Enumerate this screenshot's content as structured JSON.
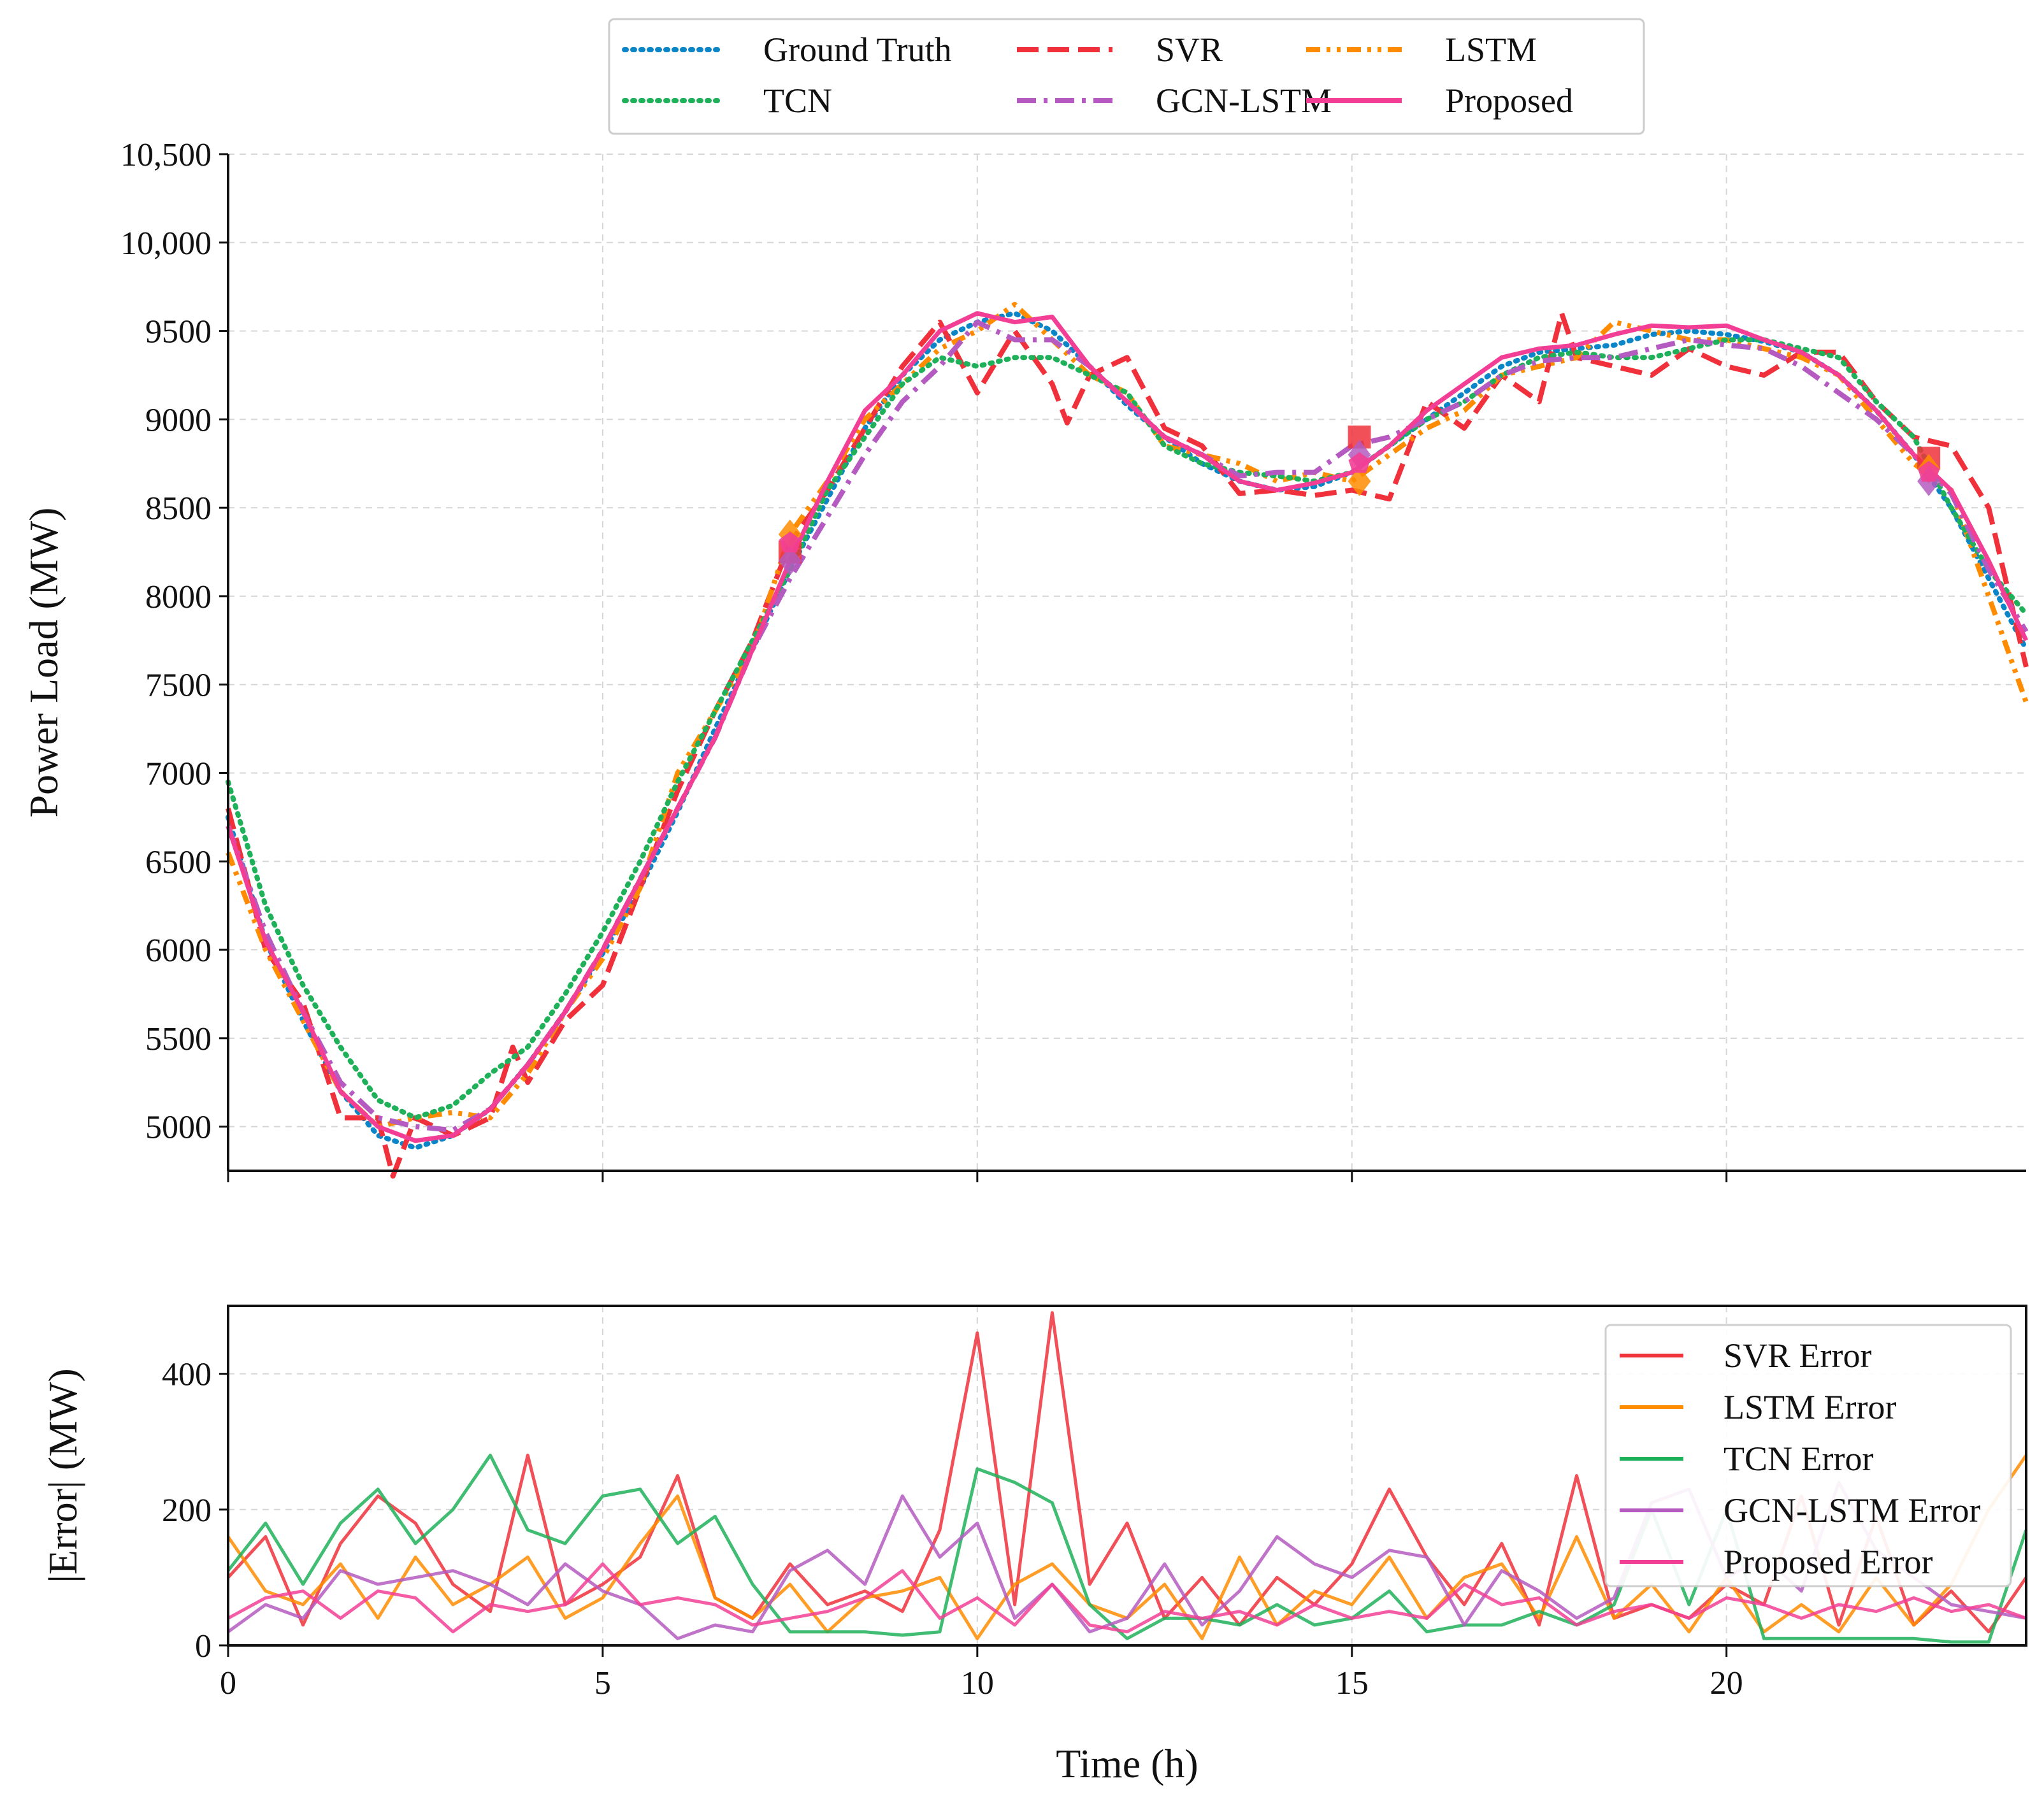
{
  "chart_data": [
    {
      "type": "line",
      "xlabel": "",
      "ylabel": "Power Load (MW)",
      "xlim": [
        0,
        24
      ],
      "ylim": [
        4750,
        10500
      ],
      "xticks": [
        0,
        5,
        10,
        15,
        20
      ],
      "yticks": [
        5000,
        5500,
        6000,
        6500,
        7000,
        7500,
        8000,
        8500,
        9000,
        9500,
        10000,
        10500
      ],
      "ytick_labels": [
        "5000",
        "5500",
        "6000",
        "6500",
        "7000",
        "7500",
        "8000",
        "8500",
        "9000",
        "9500",
        "10,000",
        "10,500"
      ],
      "grid": true,
      "legend_position": "top-center",
      "legend": [
        "Ground Truth",
        "SVR",
        "LSTM",
        "TCN",
        "GCN-LSTM",
        "Proposed"
      ],
      "series": [
        {
          "name": "Ground Truth",
          "color": "#0a85c8",
          "style": "dotted",
          "x": [
            0,
            0.5,
            1,
            1.5,
            2,
            2.5,
            3,
            3.5,
            4,
            4.5,
            5,
            5.5,
            6,
            6.5,
            7,
            7.5,
            8,
            8.5,
            9,
            9.5,
            10,
            10.5,
            11,
            11.5,
            12,
            12.5,
            13,
            13.5,
            14,
            14.5,
            15,
            15.5,
            16,
            16.5,
            17,
            17.5,
            18,
            18.5,
            19,
            19.5,
            20,
            20.5,
            21,
            21.5,
            22,
            22.5,
            23,
            23.5,
            24
          ],
          "y": [
            6750,
            6050,
            5600,
            5200,
            4950,
            4880,
            4950,
            5100,
            5350,
            5650,
            5980,
            6350,
            6780,
            7250,
            7700,
            8150,
            8550,
            8950,
            9250,
            9450,
            9550,
            9600,
            9500,
            9300,
            9080,
            8900,
            8750,
            8650,
            8600,
            8620,
            8700,
            8850,
            9000,
            9150,
            9300,
            9380,
            9400,
            9420,
            9480,
            9500,
            9480,
            9440,
            9380,
            9250,
            9050,
            8800,
            8500,
            8100,
            7700
          ]
        },
        {
          "name": "SVR",
          "color": "#f0313b",
          "style": "dashed",
          "x": [
            0,
            0.5,
            1,
            1.5,
            2,
            2.2,
            2.5,
            3,
            3.5,
            3.8,
            4,
            4.5,
            5,
            5.5,
            6,
            6.5,
            7,
            7.5,
            8,
            8.5,
            9,
            9.5,
            10,
            10.5,
            11,
            11.2,
            11.5,
            12,
            12.5,
            13,
            13.5,
            14,
            14.5,
            15,
            15.5,
            16,
            16.5,
            17,
            17.5,
            17.8,
            18,
            18.5,
            19,
            19.5,
            20,
            20.5,
            21,
            21.5,
            22,
            22.5,
            23,
            23.5,
            24
          ],
          "y": [
            6800,
            6000,
            5700,
            5050,
            5050,
            4720,
            5050,
            4950,
            5050,
            5450,
            5250,
            5600,
            5800,
            6350,
            6900,
            7350,
            7750,
            8300,
            8600,
            8950,
            9300,
            9550,
            9150,
            9500,
            9200,
            8980,
            9250,
            9350,
            8950,
            8850,
            8580,
            8600,
            8570,
            8600,
            8550,
            9100,
            8950,
            9250,
            9100,
            9600,
            9350,
            9300,
            9250,
            9400,
            9300,
            9250,
            9380,
            9380,
            9100,
            8900,
            8850,
            8500,
            7600
          ]
        },
        {
          "name": "LSTM",
          "color": "#ff8c00",
          "style": "dash-dot-dot",
          "x": [
            0,
            0.5,
            1,
            1.5,
            2,
            2.5,
            3,
            3.5,
            4,
            4.5,
            5,
            5.5,
            6,
            6.5,
            7,
            7.5,
            8,
            8.5,
            9,
            9.5,
            10,
            10.5,
            11,
            11.5,
            12,
            12.5,
            13,
            13.5,
            14,
            14.5,
            15,
            15.5,
            16,
            16.5,
            17,
            17.5,
            18,
            18.5,
            19,
            19.5,
            20,
            20.5,
            21,
            21.5,
            22,
            22.5,
            23,
            23.5,
            24
          ],
          "y": [
            6550,
            6000,
            5600,
            5200,
            5000,
            5050,
            5080,
            5050,
            5300,
            5650,
            5950,
            6350,
            7000,
            7350,
            7700,
            8350,
            8650,
            9000,
            9200,
            9400,
            9500,
            9650,
            9450,
            9250,
            9150,
            8850,
            8800,
            8750,
            8650,
            8700,
            8650,
            8800,
            8950,
            9050,
            9250,
            9300,
            9350,
            9550,
            9500,
            9450,
            9450,
            9400,
            9350,
            9250,
            9000,
            8750,
            8600,
            8000,
            7400
          ]
        },
        {
          "name": "TCN",
          "color": "#1fb05a",
          "style": "dotted",
          "x": [
            0,
            0.5,
            1,
            1.5,
            2,
            2.5,
            3,
            3.5,
            4,
            4.5,
            5,
            5.5,
            6,
            6.5,
            7,
            7.5,
            8,
            8.5,
            9,
            9.5,
            10,
            10.5,
            11,
            11.5,
            12,
            12.5,
            13,
            13.5,
            14,
            14.5,
            15,
            15.5,
            16,
            16.5,
            17,
            17.5,
            18,
            18.5,
            19,
            19.5,
            20,
            20.5,
            21,
            21.5,
            22,
            22.5,
            23,
            23.5,
            24
          ],
          "y": [
            6950,
            6250,
            5800,
            5450,
            5150,
            5050,
            5120,
            5300,
            5450,
            5750,
            6100,
            6500,
            6950,
            7350,
            7750,
            8150,
            8600,
            8900,
            9200,
            9350,
            9300,
            9350,
            9350,
            9250,
            9150,
            8850,
            8750,
            8700,
            8680,
            8650,
            8700,
            8850,
            9000,
            9100,
            9250,
            9350,
            9380,
            9350,
            9350,
            9400,
            9450,
            9450,
            9400,
            9350,
            9100,
            8900,
            8500,
            8150,
            7900
          ]
        },
        {
          "name": "GCN-LSTM",
          "color": "#b45ac0",
          "style": "dash-dot",
          "x": [
            0,
            0.5,
            1,
            1.5,
            2,
            2.5,
            3,
            3.5,
            4,
            4.5,
            5,
            5.5,
            6,
            6.5,
            7,
            7.5,
            8,
            8.5,
            9,
            9.5,
            10,
            10.5,
            11,
            11.5,
            12,
            12.5,
            13,
            13.5,
            14,
            14.5,
            15,
            15.5,
            16,
            16.5,
            17,
            17.5,
            18,
            18.5,
            19,
            19.5,
            20,
            20.5,
            21,
            21.5,
            22,
            22.5,
            23,
            23.5,
            24
          ],
          "y": [
            6700,
            6100,
            5650,
            5250,
            5050,
            5000,
            4980,
            5100,
            5350,
            5650,
            6000,
            6400,
            6800,
            7200,
            7700,
            8100,
            8450,
            8800,
            9100,
            9300,
            9550,
            9450,
            9450,
            9300,
            9100,
            8900,
            8800,
            8680,
            8700,
            8700,
            8850,
            8900,
            9000,
            9100,
            9250,
            9330,
            9350,
            9350,
            9400,
            9450,
            9420,
            9400,
            9300,
            9150,
            9000,
            8800,
            8580,
            8150,
            7800
          ]
        },
        {
          "name": "Proposed",
          "color": "#f23f95",
          "style": "solid",
          "x": [
            0,
            0.5,
            1,
            1.5,
            2,
            2.5,
            3,
            3.5,
            4,
            4.5,
            5,
            5.5,
            6,
            6.5,
            7,
            7.5,
            8,
            8.5,
            9,
            9.5,
            10,
            10.5,
            11,
            11.5,
            12,
            12.5,
            13,
            13.5,
            14,
            14.5,
            15,
            15.5,
            16,
            16.5,
            17,
            17.5,
            18,
            18.5,
            19,
            19.5,
            20,
            20.5,
            21,
            21.5,
            22,
            22.5,
            23,
            23.5,
            24
          ],
          "y": [
            6700,
            6050,
            5650,
            5200,
            5000,
            4920,
            4950,
            5100,
            5350,
            5650,
            6000,
            6400,
            6800,
            7200,
            7700,
            8200,
            8650,
            9050,
            9250,
            9500,
            9600,
            9550,
            9580,
            9300,
            9100,
            8900,
            8800,
            8650,
            8600,
            8640,
            8700,
            8850,
            9050,
            9200,
            9350,
            9400,
            9420,
            9480,
            9530,
            9520,
            9530,
            9450,
            9380,
            9250,
            9050,
            8800,
            8600,
            8200,
            7750
          ]
        }
      ],
      "markers": [
        {
          "series": "SVR",
          "shape": "square",
          "x": [
            7.5,
            15.1,
            22.7
          ],
          "y": [
            8250,
            8900,
            8780
          ]
        },
        {
          "series": "LSTM",
          "shape": "diamond",
          "x": [
            7.5,
            15.1,
            22.7
          ],
          "y": [
            8350,
            8650,
            8720
          ]
        },
        {
          "series": "GCN-LSTM",
          "shape": "diamond",
          "x": [
            7.5,
            15.1,
            22.7
          ],
          "y": [
            8200,
            8800,
            8650
          ]
        },
        {
          "series": "Proposed",
          "shape": "pentagon",
          "x": [
            7.5,
            15.1,
            22.7
          ],
          "y": [
            8300,
            8750,
            8700
          ]
        }
      ]
    },
    {
      "type": "line",
      "xlabel": "Time (h)",
      "ylabel": "|Error| (MW)",
      "xlim": [
        0,
        24
      ],
      "ylim": [
        0,
        500
      ],
      "xticks": [
        0,
        5,
        10,
        15,
        20
      ],
      "yticks": [
        0,
        200,
        400
      ],
      "grid": true,
      "legend_position": "top-right",
      "legend": [
        "SVR Error",
        "LSTM Error",
        "TCN Error",
        "GCN-LSTM Error",
        "Proposed Error"
      ],
      "x": [
        0,
        0.5,
        1,
        1.5,
        2,
        2.5,
        3,
        3.5,
        4,
        4.5,
        5,
        5.5,
        6,
        6.5,
        7,
        7.5,
        8,
        8.5,
        9,
        9.5,
        10,
        10.5,
        11,
        11.5,
        12,
        12.5,
        13,
        13.5,
        14,
        14.5,
        15,
        15.5,
        16,
        16.5,
        17,
        17.5,
        18,
        18.5,
        19,
        19.5,
        20,
        20.5,
        21,
        21.5,
        22,
        22.5,
        23,
        23.5,
        24
      ],
      "series": [
        {
          "name": "SVR Error",
          "color": "#f0313b",
          "values": [
            100,
            160,
            30,
            150,
            220,
            180,
            90,
            50,
            280,
            60,
            90,
            130,
            250,
            70,
            40,
            120,
            60,
            80,
            50,
            170,
            460,
            60,
            490,
            90,
            180,
            40,
            100,
            30,
            100,
            60,
            120,
            230,
            130,
            60,
            150,
            30,
            250,
            40,
            60,
            40,
            90,
            60,
            220,
            30,
            190,
            30,
            80,
            20,
            100
          ]
        },
        {
          "name": "LSTM Error",
          "color": "#ff8c00",
          "values": [
            160,
            80,
            60,
            120,
            40,
            130,
            60,
            90,
            130,
            40,
            70,
            150,
            220,
            70,
            40,
            90,
            20,
            70,
            80,
            100,
            10,
            90,
            120,
            60,
            40,
            90,
            10,
            130,
            30,
            80,
            60,
            130,
            40,
            100,
            120,
            40,
            160,
            40,
            90,
            20,
            100,
            20,
            60,
            20,
            100,
            30,
            90,
            200,
            280
          ]
        },
        {
          "name": "TCN Error",
          "color": "#1fb05a",
          "values": [
            110,
            180,
            90,
            180,
            230,
            150,
            200,
            280,
            170,
            150,
            220,
            230,
            150,
            190,
            90,
            20,
            20,
            20,
            15,
            20,
            260,
            240,
            210,
            60,
            10,
            40,
            40,
            30,
            60,
            30,
            40,
            80,
            20,
            30,
            30,
            50,
            30,
            60,
            200,
            60,
            200,
            10,
            10,
            10,
            10,
            10,
            5,
            5,
            170
          ]
        },
        {
          "name": "GCN-LSTM Error",
          "color": "#b45ac0",
          "values": [
            20,
            60,
            40,
            110,
            90,
            100,
            110,
            90,
            60,
            120,
            80,
            60,
            10,
            30,
            20,
            110,
            140,
            90,
            220,
            130,
            180,
            40,
            90,
            20,
            40,
            120,
            30,
            80,
            160,
            120,
            100,
            140,
            130,
            30,
            110,
            80,
            40,
            70,
            210,
            230,
            100,
            130,
            80,
            240,
            140,
            100,
            60,
            50,
            40
          ]
        },
        {
          "name": "Proposed Error",
          "color": "#f23f95",
          "values": [
            40,
            70,
            80,
            40,
            80,
            70,
            20,
            60,
            50,
            60,
            120,
            60,
            70,
            60,
            30,
            40,
            50,
            70,
            110,
            40,
            70,
            30,
            90,
            30,
            20,
            50,
            40,
            50,
            30,
            60,
            40,
            50,
            40,
            90,
            60,
            70,
            30,
            50,
            60,
            40,
            70,
            60,
            40,
            60,
            50,
            70,
            50,
            60,
            40
          ]
        }
      ]
    }
  ]
}
